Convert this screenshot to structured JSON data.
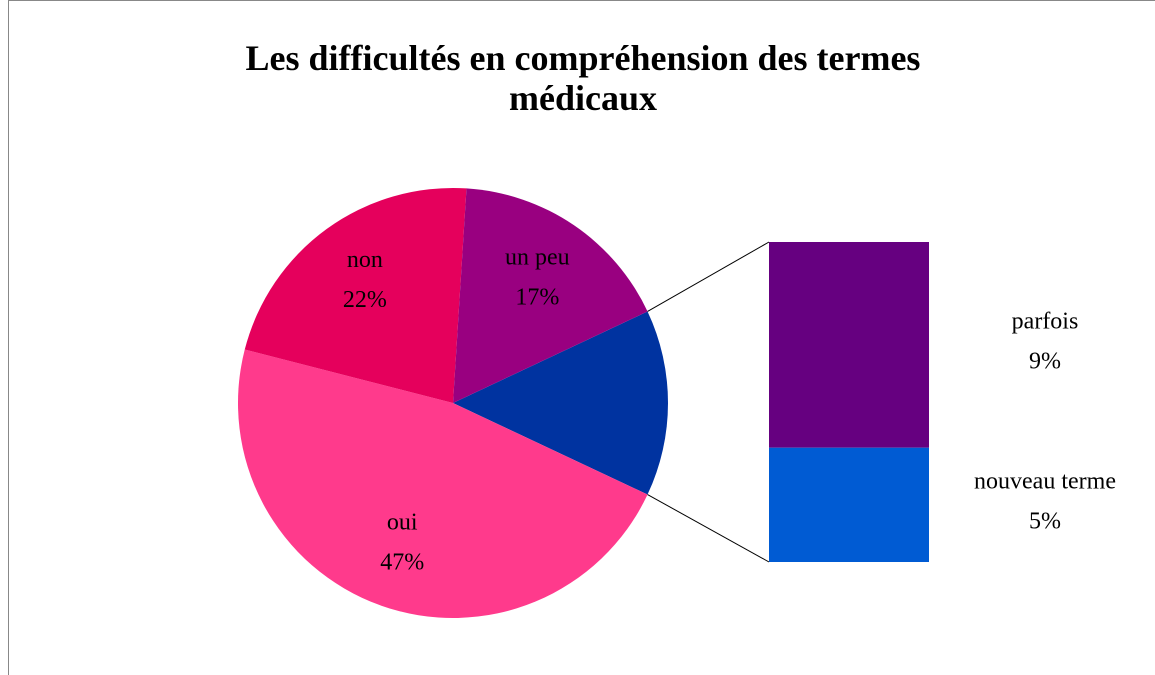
{
  "chart_data": {
    "type": "pie",
    "title": "Les difficultés en compréhension des termes médicaux",
    "categories": [
      "oui",
      "non",
      "un peu"
    ],
    "values": [
      47,
      22,
      17
    ],
    "value_labels": [
      "47%",
      "22%",
      "17%"
    ],
    "colors": [
      "#ff3a8c",
      "#e5005c",
      "#990080"
    ],
    "breakdown": {
      "categories": [
        "parfois",
        "nouveau terme"
      ],
      "values": [
        9,
        5
      ],
      "value_labels": [
        "9%",
        "5%"
      ],
      "colors": [
        "#660080",
        "#005bd3"
      ],
      "pie_color": "#0033a0"
    }
  }
}
